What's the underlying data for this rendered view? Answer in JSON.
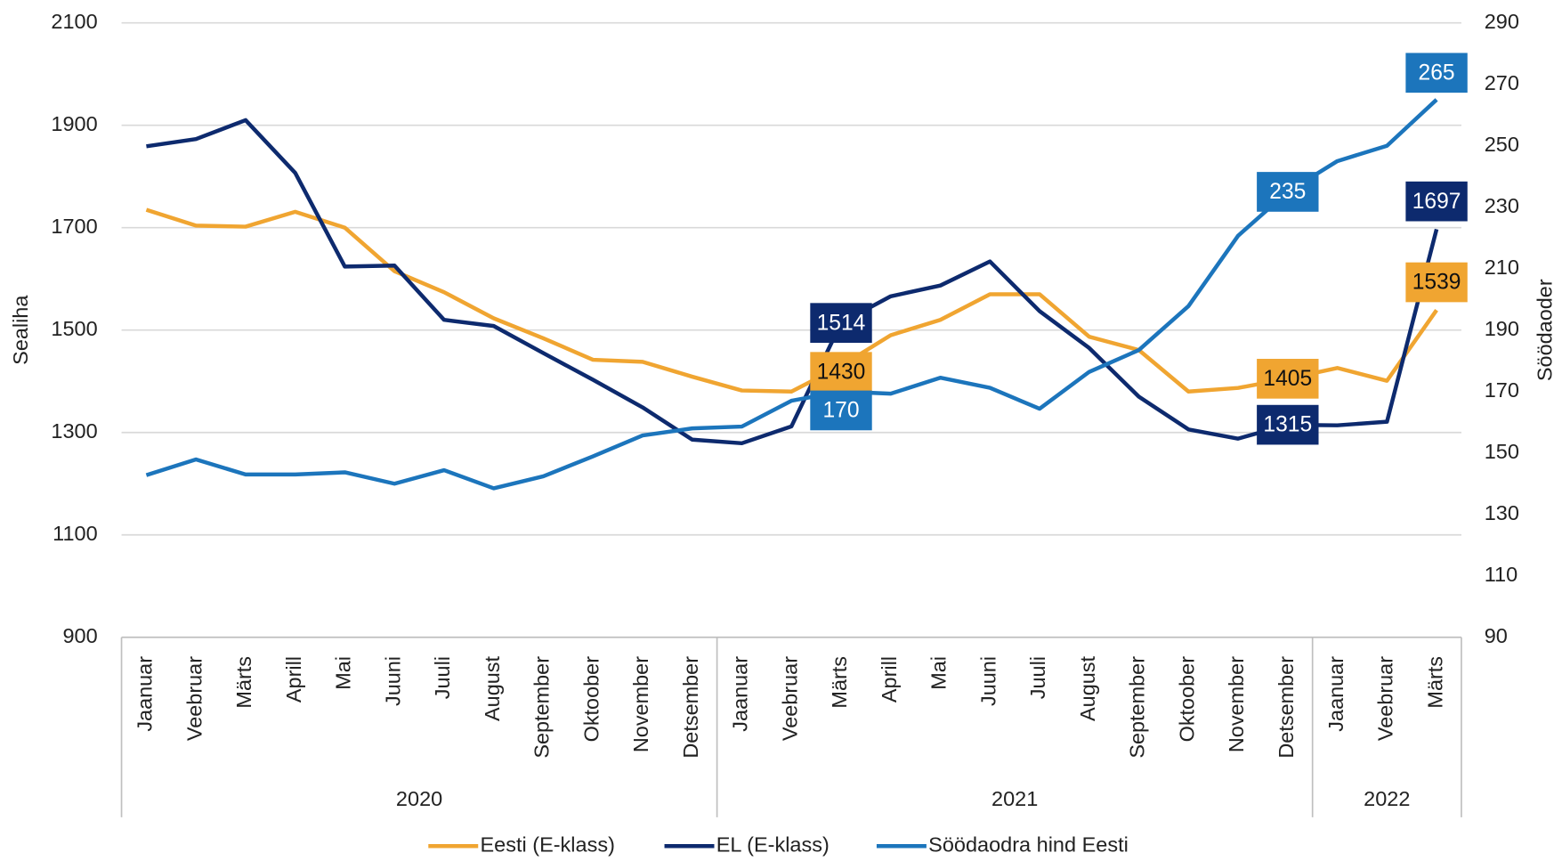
{
  "chart_data": {
    "type": "line",
    "y_label": "Sealiha",
    "y2_label": "Söödaoder",
    "groups": [
      {
        "label": "2020",
        "categories": [
          "Jaanuar",
          "Veebruar",
          "Märts",
          "Aprill",
          "Mai",
          "Juuni",
          "Juuli",
          "August",
          "September",
          "Oktoober",
          "November",
          "Detsember"
        ]
      },
      {
        "label": "2021",
        "categories": [
          "Jaanuar",
          "Veebruar",
          "Märts",
          "Aprill",
          "Mai",
          "Juuni",
          "Juuli",
          "August",
          "September",
          "Oktoober",
          "November",
          "Detsember"
        ]
      },
      {
        "label": "2022",
        "categories": [
          "Jaanuar",
          "Veebruar",
          "Märts"
        ]
      }
    ],
    "ylim": [
      900,
      2100
    ],
    "yticks": [
      900,
      1100,
      1300,
      1500,
      1700,
      1900,
      2100
    ],
    "y2lim": [
      90,
      290
    ],
    "y2ticks": [
      90,
      110,
      130,
      150,
      170,
      190,
      210,
      230,
      250,
      270,
      290
    ],
    "grid": true,
    "legend": "bottom",
    "series": [
      {
        "name": "Eesti (E-klass)",
        "color": "#f0a531",
        "label_text_color": "#111111",
        "values": [
          1735,
          1704,
          1702,
          1731,
          1700,
          1615,
          1574,
          1523,
          1484,
          1442,
          1438,
          1409,
          1382,
          1380,
          1430,
          1490,
          1520,
          1570,
          1570,
          1487,
          1461,
          1380,
          1387,
          1405,
          1426,
          1401,
          1539
        ],
        "value_labels": [
          null,
          null,
          null,
          null,
          null,
          null,
          null,
          null,
          null,
          null,
          null,
          null,
          null,
          null,
          "1430",
          null,
          null,
          null,
          null,
          null,
          null,
          null,
          null,
          "1405",
          null,
          null,
          "1539"
        ]
      },
      {
        "name": "EL (E-klass)",
        "color": "#0d2a6e",
        "label_text_color": "#ffffff",
        "values": [
          1859,
          1873,
          1910,
          1807,
          1624,
          1626,
          1520,
          1508,
          1455,
          1403,
          1349,
          1286,
          1279,
          1312,
          1514,
          1566,
          1587,
          1634,
          1537,
          1465,
          1370,
          1306,
          1288,
          1315,
          1314,
          1321,
          1697
        ],
        "value_labels": [
          null,
          null,
          null,
          null,
          null,
          null,
          null,
          null,
          null,
          null,
          null,
          null,
          null,
          null,
          "1514",
          null,
          null,
          null,
          null,
          null,
          null,
          null,
          null,
          "1315",
          null,
          null,
          "1697"
        ]
      },
      {
        "name": "Söödaodra hind Eesti",
        "color": "#1c75bc",
        "label_text_color": "#ffffff",
        "axis": "y2",
        "values": [
          142.8,
          147.9,
          143,
          143,
          143.7,
          140,
          144.4,
          138.5,
          142.4,
          148.9,
          155.7,
          158,
          158.6,
          167,
          170,
          169.3,
          174.5,
          171.2,
          164.4,
          176.4,
          183.5,
          197.8,
          220.7,
          235,
          245,
          250,
          265
        ],
        "value_labels": [
          null,
          null,
          null,
          null,
          null,
          null,
          null,
          null,
          null,
          null,
          null,
          null,
          null,
          null,
          "170",
          null,
          null,
          null,
          null,
          null,
          null,
          null,
          null,
          "235",
          null,
          null,
          "265"
        ]
      }
    ]
  }
}
